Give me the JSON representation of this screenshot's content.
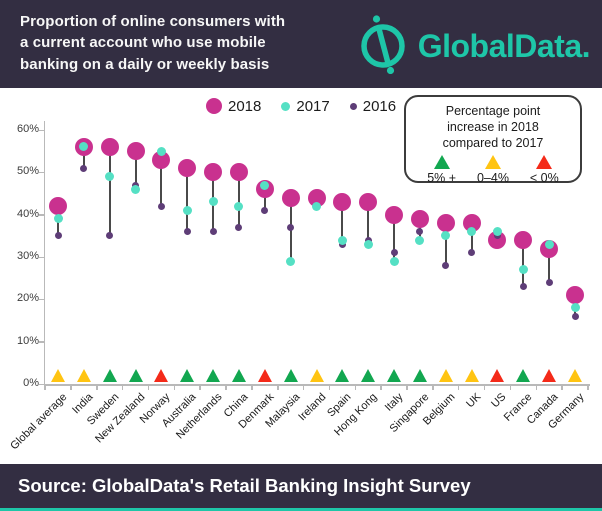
{
  "header": {
    "title": "Proportion of online consumers with\na current account who use mobile\nbanking on a daily or weekly basis",
    "logo_text": "GlobalData."
  },
  "footer": {
    "source": "Source: GlobalData's Retail Banking Insight Survey"
  },
  "key_box": {
    "title": "Percentage point\nincrease in 2018\ncompared to 2017"
  },
  "colors": {
    "navy": "#332E42",
    "brand_teal": "#1EC6A8",
    "magenta_2018": "#C9318F",
    "teal_2017": "#55E0C4",
    "purple_2016": "#5E3D77",
    "triangle_green": "#12A750",
    "triangle_yellow": "#FFC412",
    "triangle_red": "#F42A19"
  },
  "chart_data": {
    "type": "scatter",
    "title": "Proportion of online consumers with a current account who use mobile banking on a daily or weekly basis",
    "categories": [
      "Global average",
      "India",
      "Sweden",
      "New Zealand",
      "Norway",
      "Australia",
      "Netherlands",
      "China",
      "Denmark",
      "Malaysia",
      "Ireland",
      "Spain",
      "Hong Kong",
      "Italy",
      "Singapore",
      "Belgium",
      "UK",
      "US",
      "France",
      "Canada",
      "Germany"
    ],
    "series": [
      {
        "name": "2018",
        "color": "#C9318F",
        "values": [
          42,
          56,
          56,
          55,
          53,
          51,
          50,
          50,
          46,
          44,
          44,
          43,
          43,
          40,
          39,
          38,
          38,
          34,
          34,
          32,
          21
        ]
      },
      {
        "name": "2017",
        "color": "#55E0C4",
        "values": [
          39,
          56,
          49,
          46,
          55,
          41,
          43,
          42,
          47,
          29,
          42,
          34,
          33,
          29,
          34,
          35,
          36,
          36,
          27,
          33,
          18
        ]
      },
      {
        "name": "2016",
        "color": "#5E3D77",
        "values": [
          35,
          51,
          35,
          47,
          42,
          36,
          36,
          37,
          41,
          37,
          42,
          33,
          34,
          31,
          36,
          28,
          31,
          35,
          23,
          24,
          16
        ]
      }
    ],
    "ylabel": "",
    "ylim": [
      0,
      60
    ],
    "ytick_step": 10,
    "ytick_format": "{v}%",
    "grid": false,
    "legend_position": "top",
    "change_indicator": {
      "legend_title": "Percentage point increase in 2018 compared to 2017",
      "classes": [
        {
          "key": "green",
          "label": "5% +",
          "color": "#12A750"
        },
        {
          "key": "yellow",
          "label": "0–4%",
          "color": "#FFC412"
        },
        {
          "key": "red",
          "label": "< 0%",
          "color": "#F42A19"
        }
      ],
      "per_country": [
        "yellow",
        "yellow",
        "green",
        "green",
        "red",
        "green",
        "green",
        "green",
        "red",
        "green",
        "yellow",
        "green",
        "green",
        "green",
        "green",
        "yellow",
        "yellow",
        "red",
        "green",
        "red",
        "yellow"
      ]
    }
  }
}
